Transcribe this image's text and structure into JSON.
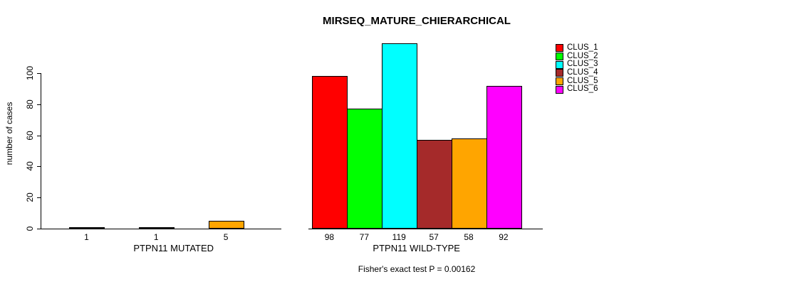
{
  "chart_data": {
    "type": "bar",
    "title": "MIRSEQ_MATURE_CHIERARCHICAL",
    "ylabel": "number of cases",
    "ylim": [
      0,
      100
    ],
    "yticks": [
      0,
      20,
      40,
      60,
      80,
      100
    ],
    "grid": false,
    "legend_position": "right",
    "categories": [
      "PTPN11 MUTATED",
      "PTPN11 WILD-TYPE"
    ],
    "series": [
      {
        "name": "CLUS_1",
        "color": "#FF0000",
        "values": [
          1,
          98
        ]
      },
      {
        "name": "CLUS_2",
        "color": "#00FF00",
        "values": [
          0,
          77
        ]
      },
      {
        "name": "CLUS_3",
        "color": "#00FFFF",
        "values": [
          1,
          119
        ]
      },
      {
        "name": "CLUS_4",
        "color": "#A52A2A",
        "values": [
          0,
          57
        ]
      },
      {
        "name": "CLUS_5",
        "color": "#FFA500",
        "values": [
          5,
          58
        ]
      },
      {
        "name": "CLUS_6",
        "color": "#FF00FF",
        "values": [
          0,
          92
        ]
      }
    ],
    "bar_value_labels": "values shown under each nonzero bar",
    "footnote": "Fisher's exact test P = 0.00162"
  }
}
